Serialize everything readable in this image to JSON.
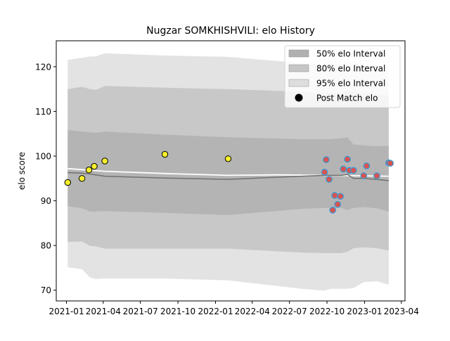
{
  "chart_data": {
    "type": "line",
    "title": "Nugzar SOMKHISHVILI: elo History",
    "xlabel": "",
    "ylabel": "elo score",
    "xlim": [
      "2020-12-07",
      "2023-04-10"
    ],
    "ylim": [
      67.6,
      125.8
    ],
    "x_ticks": [
      "2021-01",
      "2021-04",
      "2021-07",
      "2021-10",
      "2022-01",
      "2022-04",
      "2022-07",
      "2022-10",
      "2023-01",
      "2023-04"
    ],
    "y_ticks": [
      70,
      80,
      90,
      100,
      110,
      120
    ],
    "grid": false,
    "legend_position": "top-right",
    "legend": [
      {
        "label": "50% elo Interval",
        "kind": "patch",
        "color": "#b0b0b0"
      },
      {
        "label": "80% elo Interval",
        "kind": "patch",
        "color": "#c6c6c6"
      },
      {
        "label": "95% elo Interval",
        "kind": "patch",
        "color": "#dedede"
      },
      {
        "label": "Post Match elo",
        "kind": "marker",
        "color": "#000000"
      }
    ],
    "bands": [
      {
        "name": "95% elo Interval",
        "color": "#e3e3e3",
        "x": [
          "2021-01-04",
          "2021-02-08",
          "2021-02-28",
          "2021-03-14",
          "2021-04-05",
          "2021-08-30",
          "2022-02-01",
          "2022-08-01",
          "2022-09-25",
          "2022-10-10",
          "2022-11-05",
          "2022-11-20",
          "2022-12-05",
          "2022-12-30",
          "2023-01-31",
          "2023-03-01"
        ],
        "upper": [
          121.5,
          122.0,
          122.3,
          122.3,
          123.0,
          122.5,
          122.2,
          120.8,
          120.5,
          120.3,
          120.6,
          120.8,
          121.0,
          120.0,
          119.5,
          119.0
        ],
        "lower": [
          75.1,
          74.7,
          72.8,
          72.5,
          72.6,
          72.6,
          72.2,
          70.3,
          69.9,
          70.3,
          70.3,
          70.3,
          70.5,
          71.8,
          72.0,
          71.2
        ]
      },
      {
        "name": "80% elo Interval",
        "color": "#c8c8c8",
        "x": [
          "2021-01-04",
          "2021-02-08",
          "2021-02-28",
          "2021-03-14",
          "2021-04-05",
          "2021-08-30",
          "2022-02-01",
          "2022-08-01",
          "2022-09-25",
          "2022-10-10",
          "2022-11-05",
          "2022-11-20",
          "2022-12-05",
          "2022-12-30",
          "2023-01-31",
          "2023-03-01"
        ],
        "upper": [
          115.0,
          115.5,
          115.0,
          114.8,
          115.7,
          115.3,
          115.0,
          114.4,
          114.0,
          114.0,
          114.3,
          114.6,
          114.4,
          114.0,
          113.8,
          113.6
        ],
        "lower": [
          80.8,
          80.9,
          79.9,
          79.8,
          79.3,
          79.3,
          79.3,
          78.4,
          78.3,
          78.3,
          78.3,
          78.6,
          79.4,
          79.6,
          79.4,
          78.9
        ]
      },
      {
        "name": "50% elo Interval",
        "color": "#b4b4b4",
        "x": [
          "2021-01-04",
          "2021-02-08",
          "2021-02-28",
          "2021-03-14",
          "2021-04-05",
          "2021-08-30",
          "2022-02-01",
          "2022-08-01",
          "2022-09-25",
          "2022-10-10",
          "2022-11-05",
          "2022-11-20",
          "2022-12-05",
          "2022-12-30",
          "2023-01-31",
          "2023-03-01"
        ],
        "upper": [
          105.8,
          105.5,
          105.3,
          105.2,
          105.5,
          104.8,
          104.2,
          103.8,
          103.8,
          103.8,
          104.0,
          104.2,
          102.6,
          102.4,
          102.2,
          102.3
        ],
        "lower": [
          88.8,
          88.3,
          87.6,
          87.6,
          87.7,
          87.3,
          86.8,
          88.2,
          88.4,
          88.4,
          88.4,
          87.9,
          88.4,
          88.6,
          88.3,
          87.6
        ]
      }
    ],
    "series": [
      {
        "name": "",
        "style": "white-line",
        "x": [
          "2021-01-04",
          "2021-04-05",
          "2021-08-30",
          "2022-02-01",
          "2022-06-01",
          "2022-09-25",
          "2023-03-01"
        ],
        "y": [
          97.2,
          96.6,
          96.1,
          95.7,
          95.8,
          95.7,
          95.5
        ]
      },
      {
        "name": "",
        "style": "dark-line",
        "x": [
          "2021-01-04",
          "2021-02-08",
          "2021-02-28",
          "2021-03-14",
          "2021-04-05",
          "2021-08-30",
          "2022-02-01",
          "2022-08-01",
          "2022-09-25",
          "2022-10-10",
          "2022-11-05",
          "2022-11-20",
          "2022-12-05",
          "2022-12-30",
          "2023-01-31",
          "2023-03-01"
        ],
        "y": [
          96.3,
          96.2,
          96.0,
          95.8,
          95.5,
          95.1,
          94.8,
          95.5,
          95.7,
          95.7,
          95.7,
          95.9,
          95.0,
          95.0,
          94.8,
          94.5
        ]
      },
      {
        "name": "Post Match elo",
        "style": "markers-yellow",
        "x": [
          "2021-01-04",
          "2021-02-08",
          "2021-02-25",
          "2021-03-10",
          "2021-04-05",
          "2021-08-30",
          "2022-02-01"
        ],
        "y": [
          94.1,
          95.0,
          96.9,
          97.7,
          98.9,
          100.4,
          99.4
        ]
      },
      {
        "name": "Post Match elo",
        "style": "markers-red",
        "x": [
          "2022-09-25",
          "2022-09-29",
          "2022-10-06",
          "2022-10-15",
          "2022-10-20",
          "2022-10-27",
          "2022-11-03",
          "2022-11-10",
          "2022-11-20",
          "2022-11-25",
          "2022-12-05",
          "2022-12-30",
          "2023-01-06",
          "2023-01-31",
          "2023-03-01",
          "2023-03-05"
        ],
        "y": [
          96.4,
          99.2,
          94.8,
          87.9,
          91.2,
          89.2,
          91.0,
          97.1,
          99.3,
          96.8,
          96.8,
          95.6,
          97.8,
          95.6,
          98.5,
          98.4
        ]
      }
    ]
  }
}
